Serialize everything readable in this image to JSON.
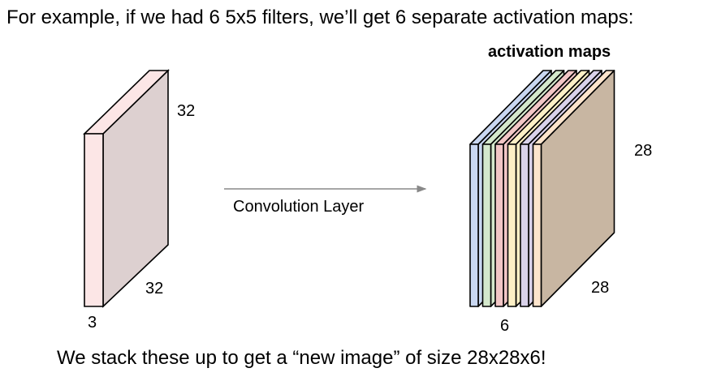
{
  "captions": {
    "top": "For example, if we had 6 5x5 filters, we’ll get 6 separate activation maps:",
    "bottom": "We stack these up to get a “new image” of size 28x28x6!"
  },
  "input_volume": {
    "height_label": "32",
    "width_label": "32",
    "depth_label": "3",
    "colors": {
      "front": "#fce6e6",
      "side": "#ddd0d0",
      "top": "#fce6e6",
      "edge": "#000000"
    }
  },
  "operation": {
    "label": "Convolution Layer",
    "arrow_color": "#888888"
  },
  "output_volume": {
    "title": "activation maps",
    "height_label": "28",
    "width_label": "28",
    "depth_label": "6",
    "maps": [
      {
        "name": "map-1",
        "front": "#c9d7f1",
        "top": "#c9d7f1"
      },
      {
        "name": "map-2",
        "front": "#d4e8cc",
        "top": "#d4e8cc"
      },
      {
        "name": "map-3",
        "front": "#f2c6c6",
        "top": "#f2c6c6"
      },
      {
        "name": "map-4",
        "front": "#fdf0c6",
        "top": "#fdf0c6"
      },
      {
        "name": "map-5",
        "front": "#d9d2ea",
        "top": "#d9d2ea"
      },
      {
        "name": "map-6",
        "front": "#fce4cc",
        "top": "#fce4cc",
        "side": "#c8b6a2"
      }
    ]
  }
}
